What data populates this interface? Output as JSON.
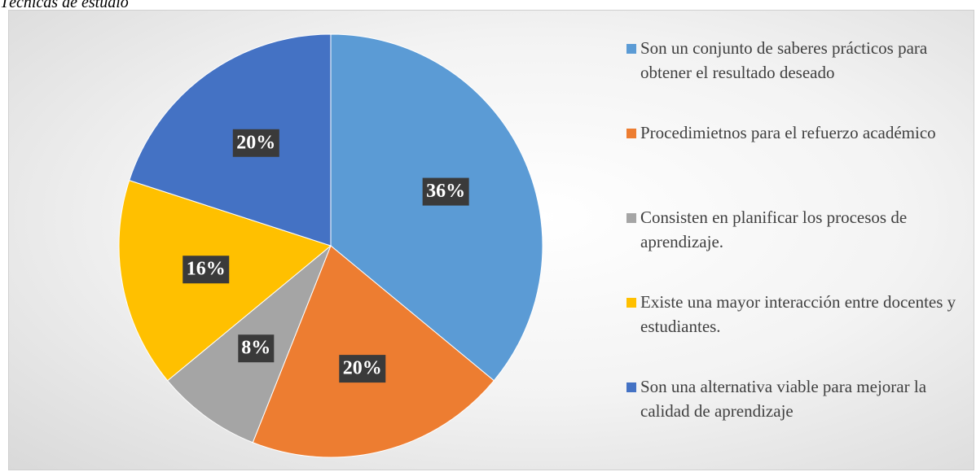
{
  "chart_data": {
    "type": "pie",
    "title": "Técnicas de estudio",
    "categories": [
      "Son un conjunto de saberes prácticos para obtener el resultado deseado",
      "Procedimietnos para el refuerzo académico",
      "Consisten en planificar los procesos de aprendizaje.",
      "Existe una mayor interacción entre docentes y estudiantes.",
      "Son una alternativa viable para mejorar la calidad de aprendizaje"
    ],
    "values": [
      36,
      20,
      8,
      16,
      20
    ],
    "value_labels": [
      "36%",
      "20%",
      "8%",
      "16%",
      "20%"
    ],
    "colors": [
      "#5b9bd5",
      "#ed7d31",
      "#a5a5a5",
      "#ffc000",
      "#4472c4"
    ],
    "legend": "right"
  }
}
